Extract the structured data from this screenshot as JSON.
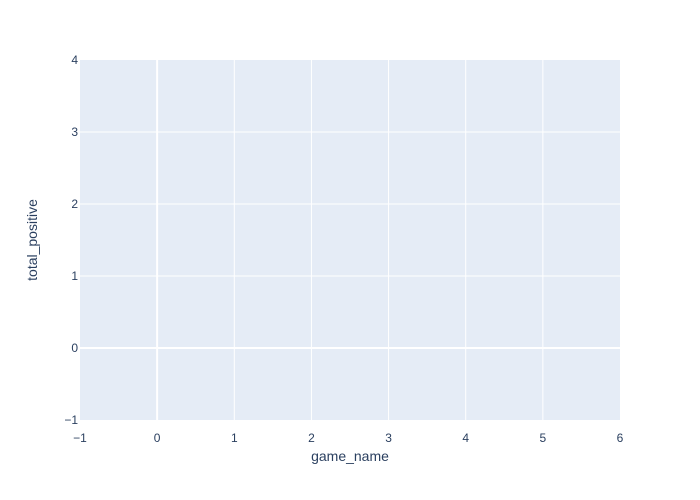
{
  "chart_data": {
    "type": "scatter",
    "title": "",
    "xlabel": "game_name",
    "ylabel": "total_positive",
    "xlim": [
      -1,
      6
    ],
    "ylim": [
      -1,
      4
    ],
    "x_ticks": [
      -1,
      0,
      1,
      2,
      3,
      4,
      5,
      6
    ],
    "y_ticks": [
      -1,
      0,
      1,
      2,
      3,
      4
    ],
    "x_tick_labels": [
      "−1",
      "0",
      "1",
      "2",
      "3",
      "4",
      "5",
      "6"
    ],
    "y_tick_labels": [
      "−1",
      "0",
      "1",
      "2",
      "3",
      "4"
    ],
    "grid": true,
    "series": [],
    "colors": {
      "plot_background": "#e5ecf6",
      "grid": "#ffffff",
      "zeroline": "#ffffff",
      "text": "#2a3f5f"
    }
  }
}
